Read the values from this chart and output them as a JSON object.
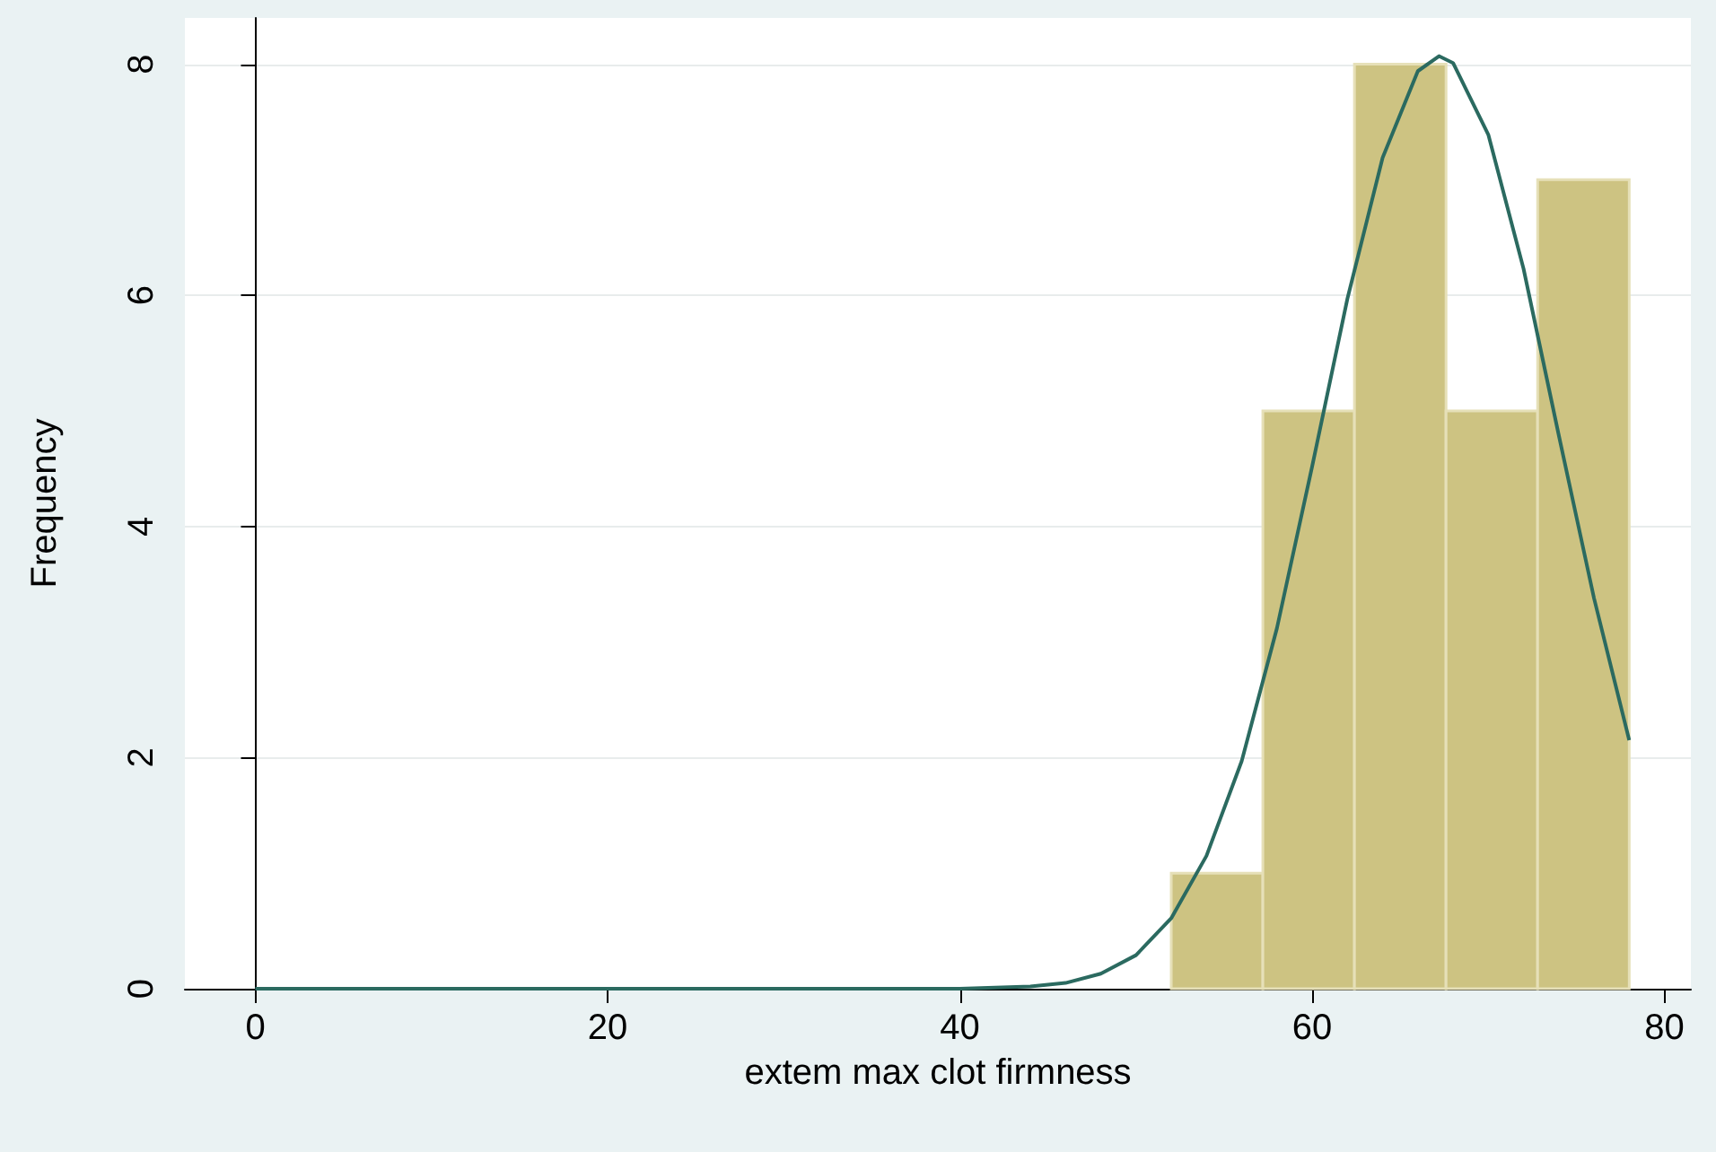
{
  "chart_data": {
    "type": "histogram",
    "xlabel": "extem max clot firmness",
    "ylabel": "Frequency",
    "bins": [
      52,
      57.2,
      62.4,
      67.6,
      72.8,
      78
    ],
    "values": [
      1,
      5,
      8,
      5,
      7
    ],
    "color": "#cdc382",
    "series": [
      {
        "type": "line",
        "color": "#2b6a60",
        "x": [
          0,
          40,
          44,
          46,
          48,
          50,
          52,
          54,
          56,
          58,
          60,
          62,
          64,
          66,
          67.2,
          68,
          70,
          72,
          74,
          76,
          78
        ],
        "values": [
          0,
          0,
          0.02,
          0.05,
          0.13,
          0.29,
          0.61,
          1.15,
          1.97,
          3.12,
          4.52,
          5.97,
          7.19,
          7.94,
          8.07,
          8.01,
          7.39,
          6.23,
          4.79,
          3.38,
          2.15
        ]
      }
    ],
    "xlim": [
      -4,
      81.5
    ],
    "xticks": [
      0,
      20,
      40,
      60,
      80
    ],
    "ylim": [
      0,
      8.4
    ],
    "yticks": [
      0,
      2,
      4,
      6,
      8
    ],
    "grid": "y"
  }
}
